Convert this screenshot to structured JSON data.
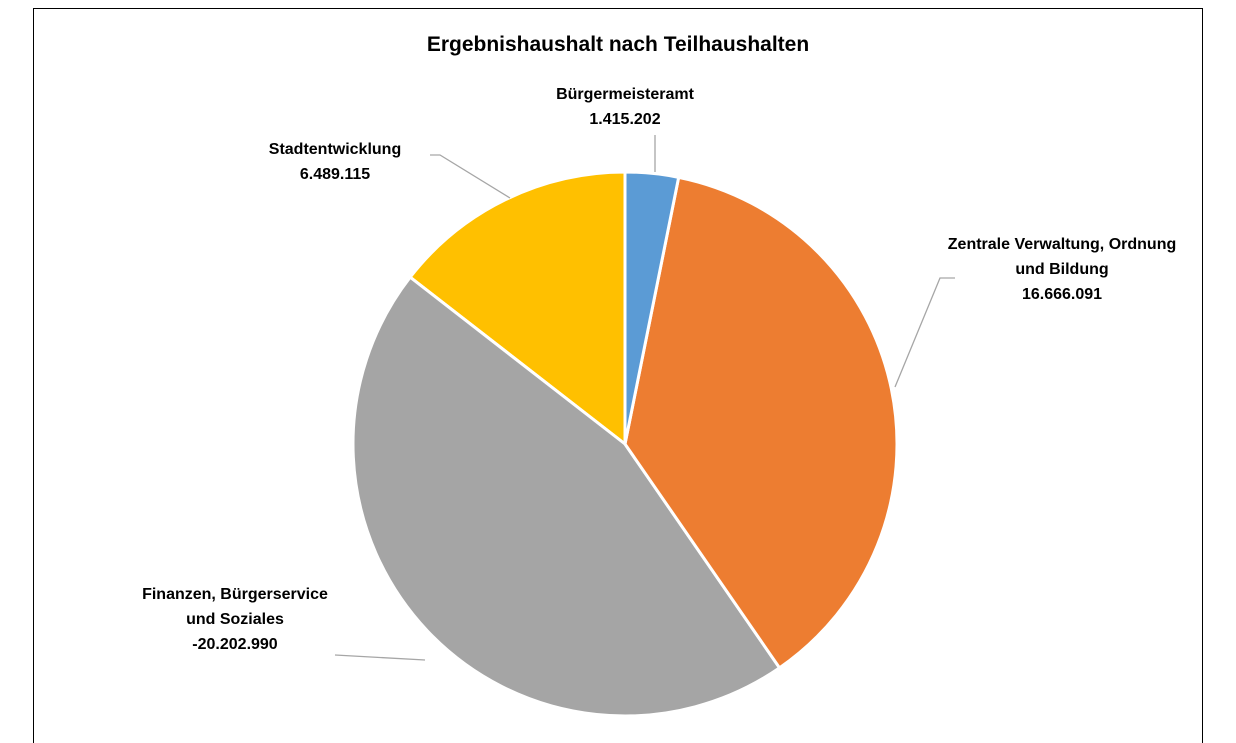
{
  "chart_data": {
    "type": "pie",
    "title": "Ergebnishaushalt nach Teilhaushalten",
    "categories": [
      "Bürgermeisteramt",
      "Zentrale Verwaltung, Ordnung und Bildung",
      "Finanzen, Bürgerservice und Soziales",
      "Stadtentwicklung"
    ],
    "values": [
      1415202,
      16666091,
      -20202990,
      6489115
    ],
    "value_labels": [
      "1.415.202",
      "16.666.091",
      "-20.202.990",
      "6.489.115"
    ],
    "colors": [
      "#5b9bd5",
      "#ed7d31",
      "#a5a5a5",
      "#ffc000"
    ]
  }
}
